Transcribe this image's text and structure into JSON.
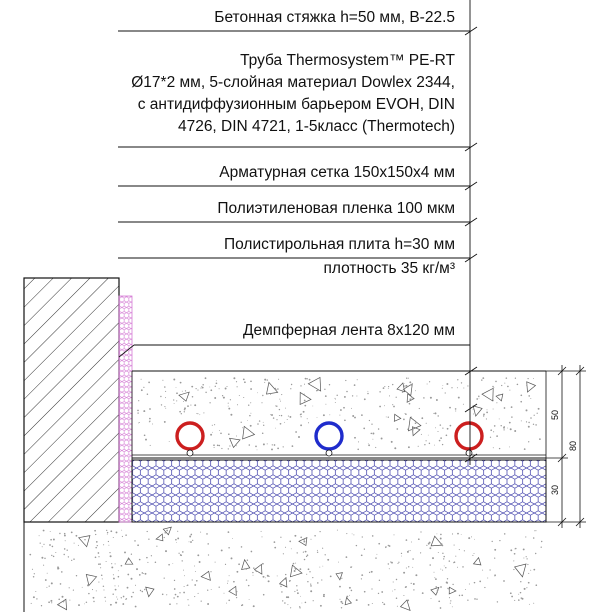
{
  "labels": {
    "screed": "Бетонная стяжка h=50 мм, B-22.5",
    "pipe": [
      "Труба  Thermosystem™ PE-RT",
      "Ø17*2 мм, 5-слойная материал Dowlex 2344,",
      "с антидиффузионным барьером EVOH, DIN",
      "4726, DIN 4721, 1-5класс (Thermotech)"
    ],
    "mesh": "Арматурная сетка 150x150x4 мм",
    "film": "Полиэтиленовая пленка 100 мкм",
    "insulation": [
      "Полистирольная плита h=30 мм",
      "плотность 35 кг/м³"
    ],
    "damper": "Демпферная лента 8x120 мм"
  },
  "dimensions": {
    "screed_height": "50",
    "insulation_height": "30",
    "total_height": "80"
  },
  "pipes": [
    {
      "flow": "supply",
      "color": "#cc1f1f"
    },
    {
      "flow": "return",
      "color": "#1f2ccc"
    },
    {
      "flow": "supply",
      "color": "#cc1f1f"
    }
  ],
  "colors": {
    "insulation_hatch": "#3a3aa8",
    "damper_tape": "#d47ad4",
    "linework": "#111111"
  }
}
